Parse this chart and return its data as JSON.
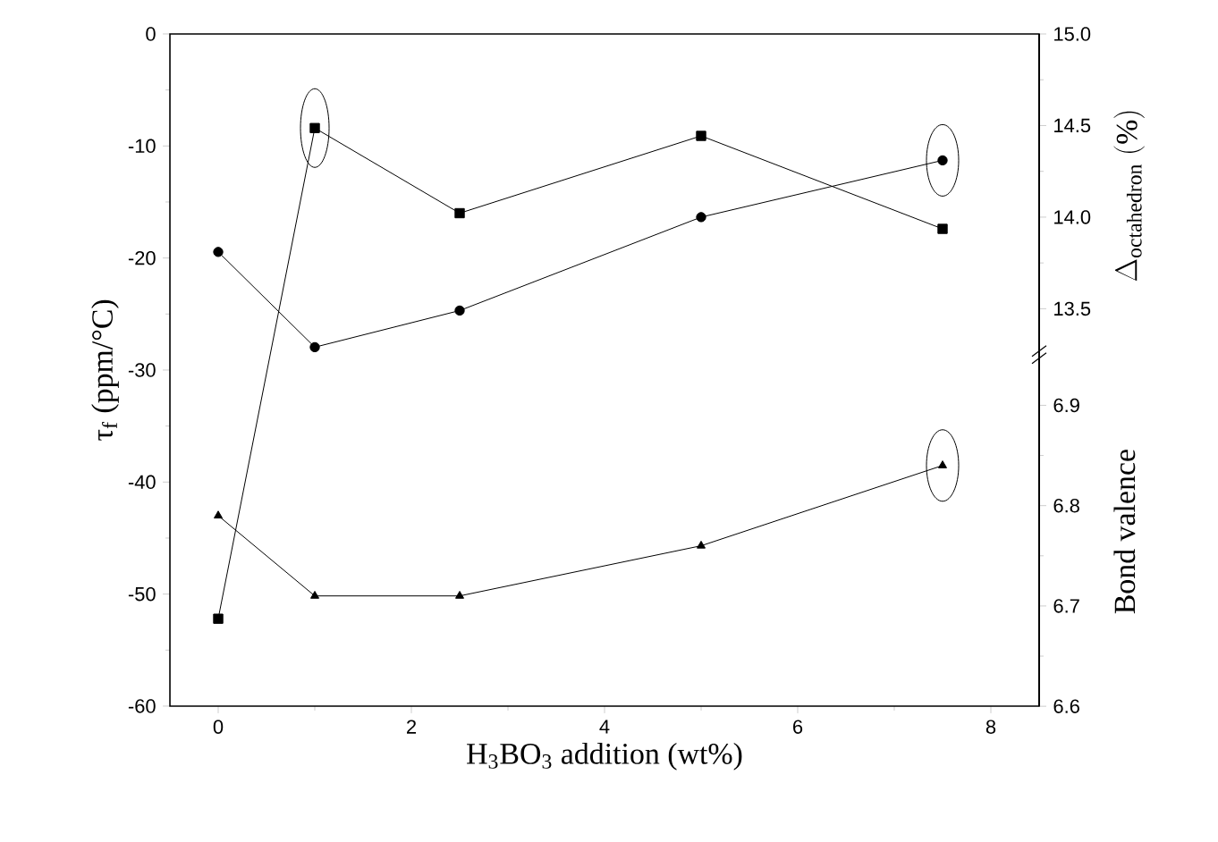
{
  "chart_data": {
    "type": "line",
    "xlabel": "H$_{3}$BO$_{3}$ addition (wt%)",
    "ylabel": "τ$_{f}$ (ppm/°C)",
    "y2label": "\\Delta_{\\mathrm{octahedron}}\\ \\mathrm{(\\%)}",
    "y3label": "Bond valence",
    "x": [
      0,
      1,
      2.5,
      5,
      7.5
    ],
    "xlim": [
      -0.5,
      8.5
    ],
    "xticks": [
      0,
      2,
      4,
      6,
      8
    ],
    "ylim": [
      -60,
      0
    ],
    "yticks": [
      -60,
      -50,
      -40,
      -30,
      -20,
      -10,
      0
    ],
    "y2lim": [
      11.33,
      15
    ],
    "y2ticks": [
      {
        "value": 13.5,
        "label": "13.5"
      },
      {
        "value": 14,
        "label": "14.0"
      },
      {
        "value": 14.5,
        "label": "14.5"
      },
      {
        "value": 15,
        "label": "15.0"
      }
    ],
    "y3lim": [
      6.6,
      7.27
    ],
    "y3ticks": [
      6.6,
      6.7,
      6.8,
      6.9
    ],
    "series": [
      {
        "color": "#000000",
        "marker": "square",
        "values": [
          -52.2,
          -8.4,
          -16.0,
          -9.1,
          -17.4
        ]
      },
      {
        "color": "#000000",
        "marker": "circle",
        "axis": "y2",
        "values": [
          13.81,
          13.29,
          13.49,
          14.0,
          14.31
        ]
      },
      {
        "color": "#000000",
        "marker": "triangle",
        "axis": "y3",
        "values": [
          6.79,
          6.71,
          6.71,
          6.76,
          6.84
        ]
      }
    ]
  }
}
